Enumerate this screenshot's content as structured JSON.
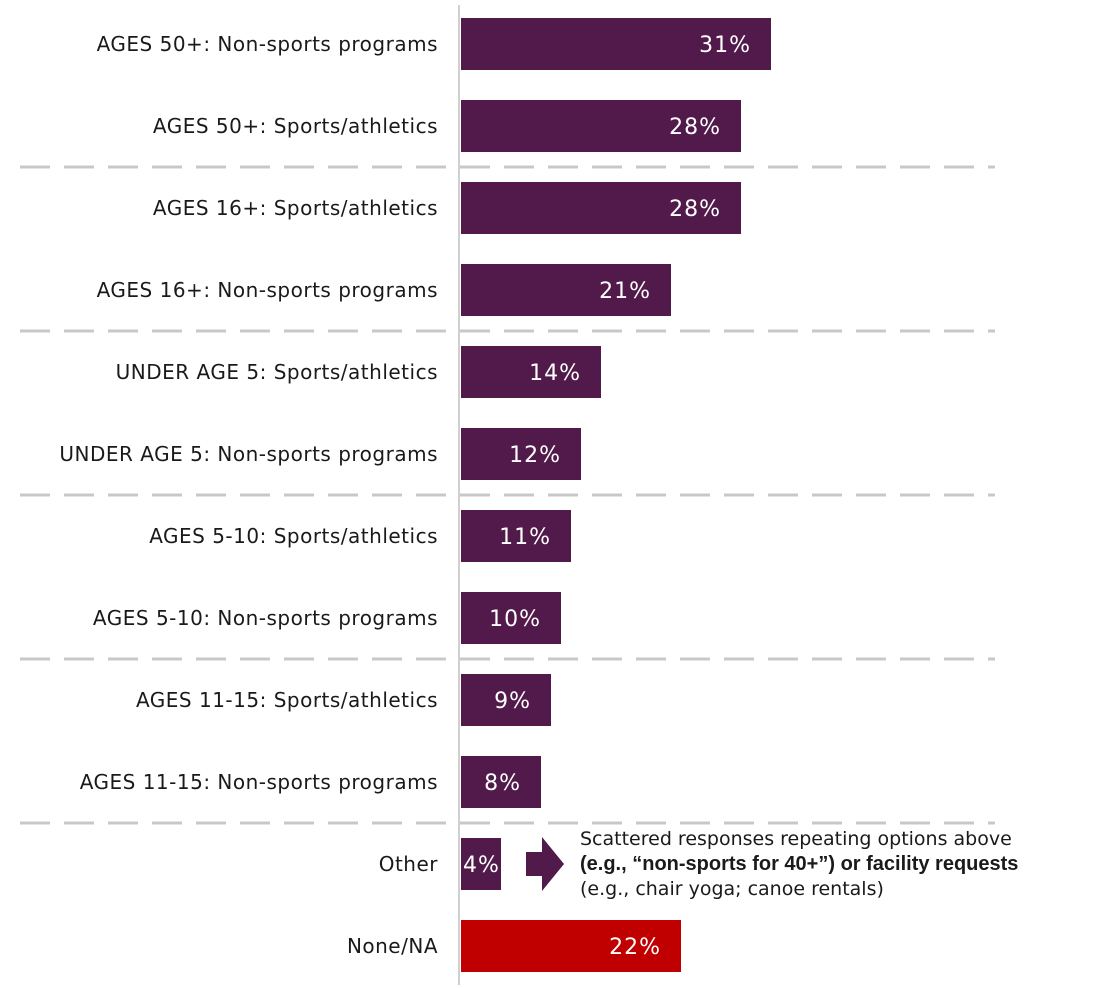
{
  "chart_data": {
    "type": "bar",
    "orientation": "horizontal",
    "categories": [
      "AGES 50+:  Non-sports programs",
      "AGES 50+:  Sports/athletics",
      "AGES 16+:  Sports/athletics",
      "AGES 16+:  Non-sports programs",
      "UNDER AGE 5:  Sports/athletics",
      "UNDER AGE 5:  Non-sports programs",
      "AGES 5-10:  Sports/athletics",
      "AGES 5-10:  Non-sports programs",
      "AGES 11-15:  Sports/athletics",
      "AGES 11-15:  Non-sports programs",
      "Other",
      "None/NA"
    ],
    "values": [
      31,
      28,
      28,
      21,
      14,
      12,
      11,
      10,
      9,
      8,
      4,
      22
    ],
    "value_labels": [
      "31%",
      "28%",
      "28%",
      "21%",
      "14%",
      "12%",
      "11%",
      "10%",
      "9%",
      "8%",
      "4%",
      "22%"
    ],
    "bar_colors": [
      "#521a4a",
      "#521a4a",
      "#521a4a",
      "#521a4a",
      "#521a4a",
      "#521a4a",
      "#521a4a",
      "#521a4a",
      "#521a4a",
      "#521a4a",
      "#521a4a",
      "#c00000"
    ],
    "group_separators_after_index": [
      1,
      3,
      5,
      7,
      9
    ],
    "xlim": [
      0,
      31
    ],
    "grid": false,
    "legend": "none",
    "annotation": {
      "line1": "Scattered responses repeating options above",
      "line2": "(e.g., “non-sports for 40+”) or facility requests",
      "line3": "(e.g., chair yoga; canoe rentals)",
      "arrow_color": "#521a4a"
    }
  }
}
